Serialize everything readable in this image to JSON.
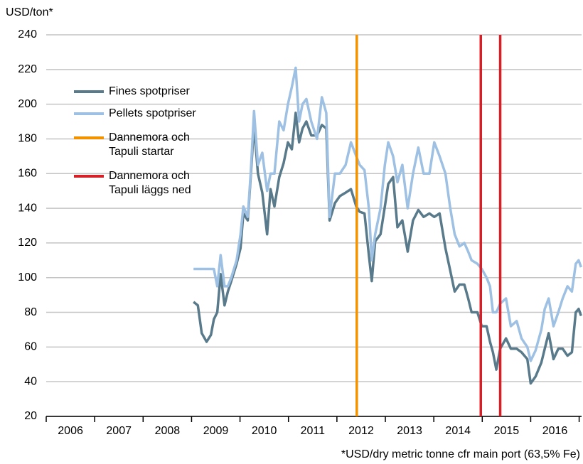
{
  "chart_data": {
    "type": "line",
    "y_label": "USD/ton*",
    "footnote": "*USD/dry metric tonne cfr main port (63,5% Fe)",
    "x": [
      2009.04,
      2009.13,
      2009.21,
      2009.31,
      2009.4,
      2009.46,
      2009.53,
      2009.6,
      2009.68,
      2009.75,
      2009.82,
      2009.93,
      2010.01,
      2010.07,
      2010.16,
      2010.22,
      2010.29,
      2010.37,
      2010.46,
      2010.56,
      2010.63,
      2010.71,
      2010.81,
      2010.9,
      2010.99,
      2011.07,
      2011.15,
      2011.22,
      2011.29,
      2011.37,
      2011.47,
      2011.59,
      2011.69,
      2011.78,
      2011.85,
      2011.96,
      2012.06,
      2012.18,
      2012.29,
      2012.4,
      2012.47,
      2012.57,
      2012.66,
      2012.72,
      2012.79,
      2012.9,
      2012.99,
      2013.06,
      2013.16,
      2013.25,
      2013.35,
      2013.46,
      2013.57,
      2013.68,
      2013.79,
      2013.91,
      2014.01,
      2014.12,
      2014.24,
      2014.34,
      2014.43,
      2014.53,
      2014.63,
      2014.71,
      2014.78,
      2014.9,
      2014.99,
      2015.09,
      2015.16,
      2015.22,
      2015.29,
      2015.37,
      2015.49,
      2015.59,
      2015.71,
      2015.81,
      2015.93,
      2016.0,
      2016.1,
      2016.22,
      2016.29,
      2016.37,
      2016.47,
      2016.57,
      2016.66,
      2016.76,
      2016.85,
      2016.93,
      2016.99,
      2017.04
    ],
    "series": [
      {
        "name": "Fines spotpriser",
        "color": "#587a8b",
        "values": [
          86,
          84,
          68,
          63,
          67,
          76,
          80,
          102,
          84,
          92,
          98,
          108,
          117,
          137,
          133,
          158,
          188,
          160,
          149,
          125,
          151,
          141,
          158,
          166,
          178,
          174,
          195,
          178,
          186,
          190,
          182,
          182,
          188,
          186,
          133,
          143,
          147,
          149,
          151,
          141,
          138,
          137,
          113,
          98,
          121,
          125,
          141,
          154,
          158,
          129,
          133,
          115,
          133,
          139,
          135,
          137,
          135,
          137,
          117,
          104,
          92,
          96,
          96,
          88,
          80,
          80,
          72,
          72,
          63,
          57,
          47,
          59,
          65,
          59,
          59,
          57,
          53,
          39,
          43,
          51,
          59,
          68,
          53,
          59,
          59,
          55,
          57,
          80,
          82,
          78
        ]
      },
      {
        "name": "Pellets spotpriser",
        "color": "#9dc0e3",
        "values": [
          105,
          105,
          105,
          105,
          105,
          105,
          95,
          113,
          95,
          95,
          100,
          110,
          125,
          141,
          135,
          160,
          196,
          165,
          172,
          150,
          160,
          160,
          190,
          185,
          200,
          210,
          221,
          190,
          200,
          203,
          190,
          180,
          204,
          195,
          135,
          160,
          160,
          165,
          178,
          170,
          165,
          162,
          140,
          110,
          125,
          140,
          165,
          178,
          170,
          155,
          165,
          140,
          160,
          175,
          160,
          160,
          178,
          170,
          160,
          140,
          125,
          118,
          120,
          115,
          110,
          108,
          105,
          100,
          95,
          80,
          80,
          85,
          88,
          72,
          75,
          65,
          60,
          52,
          58,
          70,
          82,
          88,
          72,
          80,
          88,
          95,
          92,
          108,
          110,
          106
        ]
      }
    ],
    "vlines": [
      {
        "name": "Dannemora och Tapuli startar",
        "color": "#f39200",
        "x": [
          2012.41
        ]
      },
      {
        "name": "Dannemora och Tapuli läggs ned",
        "color": "#d62027",
        "x": [
          2014.97,
          2015.37
        ]
      }
    ],
    "xlim": [
      2006,
      2017.05
    ],
    "xticks": [
      {
        "value": 2006.5,
        "label": "2006"
      },
      {
        "value": 2007.5,
        "label": "2007"
      },
      {
        "value": 2008.5,
        "label": "2008"
      },
      {
        "value": 2009.5,
        "label": "2009"
      },
      {
        "value": 2010.5,
        "label": "2010"
      },
      {
        "value": 2011.5,
        "label": "2011"
      },
      {
        "value": 2012.5,
        "label": "2012"
      },
      {
        "value": 2013.5,
        "label": "2013"
      },
      {
        "value": 2014.5,
        "label": "2014"
      },
      {
        "value": 2015.5,
        "label": "2015"
      },
      {
        "value": 2016.5,
        "label": "2016"
      }
    ],
    "xminorticks": [
      2006,
      2007,
      2008,
      2009,
      2010,
      2011,
      2012,
      2013,
      2014,
      2015,
      2016,
      2017
    ],
    "ylim": [
      20,
      240
    ],
    "yticks": [
      20,
      40,
      60,
      80,
      100,
      120,
      140,
      160,
      180,
      200,
      220,
      240
    ],
    "grid": true
  }
}
